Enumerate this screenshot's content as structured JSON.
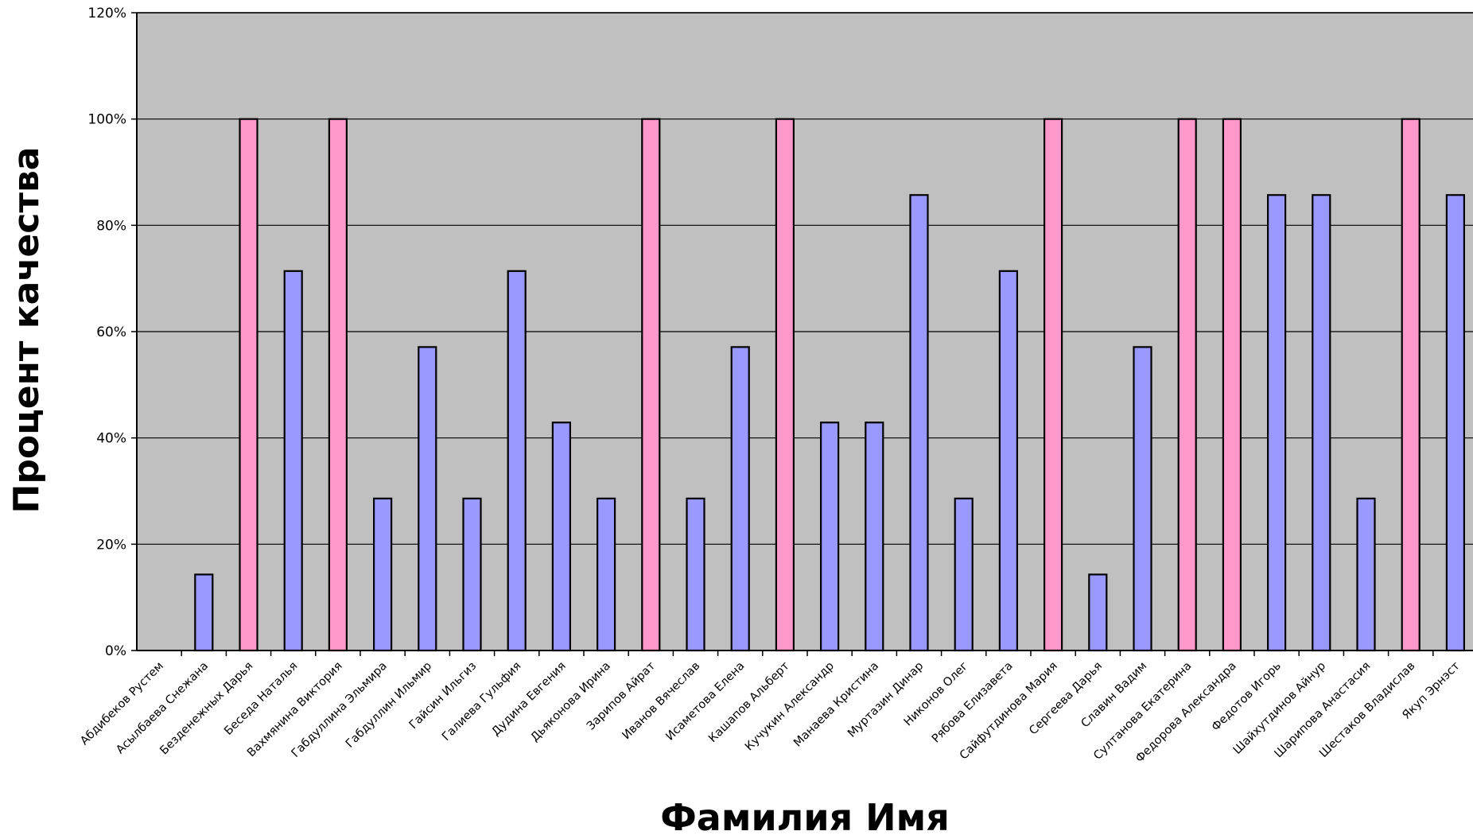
{
  "chart_data": {
    "type": "bar",
    "xlabel": "Фамилия Имя",
    "ylabel": "Процент качества",
    "ylim": [
      0,
      1.2
    ],
    "y_ticks": [
      "0%",
      "20%",
      "40%",
      "60%",
      "80%",
      "100%",
      "120%"
    ],
    "grid": true,
    "colors": {
      "plot_bg": "#C0C0C0",
      "bar_normal": "#9999FF",
      "bar_full": "#FF99CC",
      "border": "#000000"
    },
    "categories": [
      "Абдибеков Рустем",
      "Асылбаева Снежана",
      "Безденежных Дарья",
      "Беседа Наталья",
      "Вахмянина Виктория",
      "Габдуллина Эльмира",
      "Габдуллин Ильмир",
      "Гайсин Ильгиз",
      "Галиева Гульфия",
      "Дудина Евгения",
      "Дьяконова Ирина",
      "Зарипов Айрат",
      "Иванов Вячеслав",
      "Исаметова Елена",
      "Кашапов Альберт",
      "Кучукин Александр",
      "Манаева Кристина",
      "Муртазин Динар",
      "Никонов Олег",
      "Рябова Елизавета",
      "Сайфутдинова Мария",
      "Сергеева Дарья",
      "Славин Вадим",
      "Султанова Екатерина",
      "Федорова Александра",
      "Федотов Игорь",
      "Шайхутдинов Айнур",
      "Шарипова Анастасия",
      "Шестаков Владислав",
      "Якуп Эрнэст"
    ],
    "values": [
      0,
      0.143,
      1,
      0.714,
      1,
      0.286,
      0.571,
      0.286,
      0.714,
      0.429,
      0.286,
      1,
      0.286,
      0.571,
      1,
      0.429,
      0.429,
      0.857,
      0.286,
      0.714,
      1,
      0.143,
      0.571,
      1,
      1,
      0.857,
      0.857,
      0.286,
      1,
      0.857
    ]
  }
}
